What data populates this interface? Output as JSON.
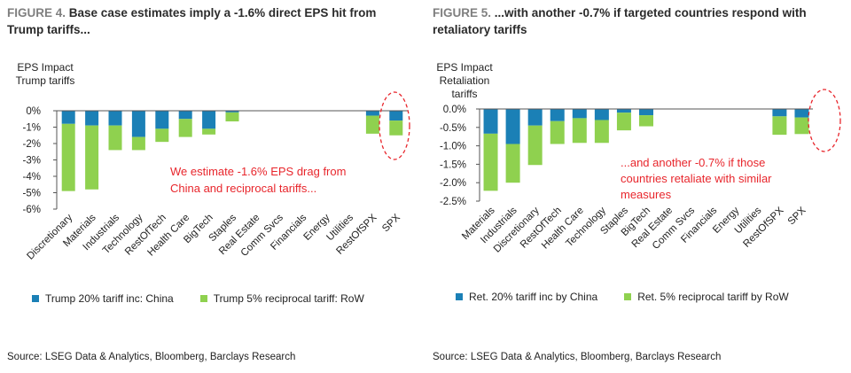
{
  "colors": {
    "china": "#1b80b6",
    "row": "#8fd14f",
    "annotation": "#e8262c",
    "axis": "#555555"
  },
  "chart_data": [
    {
      "type": "bar",
      "stacked": true,
      "figure_number": "FIGURE 4.",
      "title": "Base case estimates imply a -1.6% direct EPS hit from Trump tariffs...",
      "ylabel": [
        "EPS Impact",
        "Trump tariffs"
      ],
      "ylim": [
        -6,
        0
      ],
      "yticks": [
        0,
        -1,
        -2,
        -3,
        -4,
        -5,
        -6
      ],
      "ytick_labels": [
        "0%",
        "-1%",
        "-2%",
        "-3%",
        "-4%",
        "-5%",
        "-6%"
      ],
      "categories": [
        "Discretionary",
        "Materials",
        "Industrials",
        "Technology",
        "RestOfTech",
        "Health Care",
        "BigTech",
        "Staples",
        "Real Estate",
        "Comm Svcs",
        "Financials",
        "Energy",
        "Utilities",
        "RestOfSPX",
        "SPX"
      ],
      "series": [
        {
          "name": "Trump 20% tariff inc: China",
          "values": [
            -0.8,
            -0.9,
            -0.9,
            -1.6,
            -1.1,
            -0.5,
            -1.1,
            -0.1,
            0,
            0,
            0,
            0,
            0,
            -0.3,
            -0.6
          ]
        },
        {
          "name": "Trump 5% reciprocal tariff: RoW",
          "values": [
            -4.1,
            -3.9,
            -1.5,
            -0.8,
            -0.8,
            -1.1,
            -0.35,
            -0.55,
            0,
            0,
            0,
            0,
            0,
            -1.1,
            -0.9
          ]
        }
      ],
      "annotation": [
        "We estimate -1.6% EPS drag from",
        "China and reciprocal tariffs..."
      ],
      "highlighted_category": "SPX",
      "source": "Source: LSEG Data & Analytics, Bloomberg, Barclays Research"
    },
    {
      "type": "bar",
      "stacked": true,
      "figure_number": "FIGURE 5.",
      "title": "...with another -0.7% if targeted countries respond with retaliatory tariffs",
      "ylabel": [
        "EPS Impact",
        "Retaliation",
        "tariffs"
      ],
      "ylim": [
        -2.5,
        0
      ],
      "yticks": [
        0,
        -0.5,
        -1,
        -1.5,
        -2,
        -2.5
      ],
      "ytick_labels": [
        "0.0%",
        "-0.5%",
        "-1.0%",
        "-1.5%",
        "-2.0%",
        "-2.5%"
      ],
      "categories": [
        "Materials",
        "Industrials",
        "Discretionary",
        "RestOfTech",
        "Health Care",
        "Technology",
        "Staples",
        "BigTech",
        "Real Estate",
        "Comm Svcs",
        "Financials",
        "Energy",
        "Utilities",
        "RestOfSPX",
        "SPX"
      ],
      "series": [
        {
          "name": "Ret. 20% tariff inc by China",
          "values": [
            -0.67,
            -0.95,
            -0.45,
            -0.33,
            -0.25,
            -0.3,
            -0.1,
            -0.17,
            0,
            0,
            0,
            0,
            0,
            -0.2,
            -0.23
          ]
        },
        {
          "name": "Ret. 5% reciprocal tariff by RoW",
          "values": [
            -1.55,
            -1.05,
            -1.07,
            -0.62,
            -0.67,
            -0.62,
            -0.48,
            -0.3,
            0,
            0,
            0,
            0,
            0,
            -0.5,
            -0.45
          ]
        }
      ],
      "annotation": [
        "...and another -0.7% if those",
        "countries retaliate with similar",
        "measures"
      ],
      "highlighted_category": "SPX",
      "source": "Source: LSEG Data & Analytics, Bloomberg, Barclays Research"
    }
  ]
}
